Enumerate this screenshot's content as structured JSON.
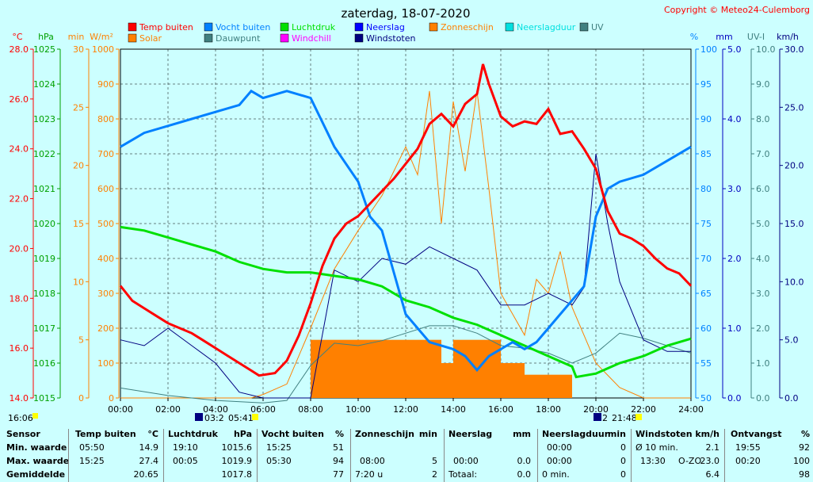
{
  "header": {
    "title": "zaterdag, 18-07-2020",
    "copyright": "Copyright © Meteo24-Culemborg"
  },
  "legend": [
    {
      "label": "Temp buiten",
      "color": "#ff0000"
    },
    {
      "label": "Vocht buiten",
      "color": "#0080ff"
    },
    {
      "label": "Luchtdruk",
      "color": "#00e000"
    },
    {
      "label": "Neerslag",
      "color": "#0000ff"
    },
    {
      "label": "Zonneschijn",
      "color": "#ff8000"
    },
    {
      "label": "Neerslagduur",
      "color": "#00e0e0"
    },
    {
      "label": "UV",
      "color": "#408080"
    },
    {
      "label": "Solar",
      "color": "#ff8000"
    },
    {
      "label": "Dauwpunt",
      "color": "#408080"
    },
    {
      "label": "Windchill",
      "color": "#ff00ff"
    },
    {
      "label": "Windstoten",
      "color": "#000080"
    }
  ],
  "axes": {
    "temp": {
      "unit": "°C",
      "ticks": [
        "28.0",
        "26.0",
        "24.0",
        "22.0",
        "20.0",
        "18.0",
        "16.0",
        "14.0"
      ],
      "color": "#ff0000"
    },
    "pressure": {
      "unit": "hPa",
      "ticks": [
        "1025",
        "1024",
        "1023",
        "1022",
        "1021",
        "1020",
        "1019",
        "1018",
        "1017",
        "1016",
        "1015"
      ],
      "color": "#00a000"
    },
    "sun_min": {
      "unit": "min",
      "ticks": [
        "30",
        "25",
        "20",
        "15",
        "10",
        "5",
        "0"
      ],
      "color": "#ff8000"
    },
    "solar": {
      "unit": "W/m²",
      "ticks": [
        "1000",
        "900",
        "800",
        "700",
        "600",
        "500",
        "400",
        "300",
        "200",
        "100",
        "0"
      ],
      "color": "#ff8000"
    },
    "humidity": {
      "unit": "%",
      "ticks": [
        "100",
        "95",
        "90",
        "85",
        "80",
        "75",
        "70",
        "65",
        "60",
        "55",
        "50"
      ],
      "color": "#0080ff"
    },
    "rain": {
      "unit": "mm",
      "ticks": [
        "5.0",
        "4.0",
        "3.0",
        "2.0",
        "1.0",
        "0.0"
      ],
      "color": "#0000c0"
    },
    "uv": {
      "unit": "UV-I",
      "ticks": [
        "10.0",
        "9.0",
        "8.0",
        "7.0",
        "6.0",
        "5.0",
        "4.0",
        "3.0",
        "2.0",
        "1.0",
        "0.0"
      ],
      "color": "#408080"
    },
    "wind": {
      "unit": "km/h",
      "ticks": [
        "30.0",
        "25.0",
        "20.0",
        "15.0",
        "10.0",
        "5.0",
        "0.0"
      ],
      "color": "#000080"
    },
    "time": {
      "ticks": [
        "00:00",
        "02:00",
        "04:00",
        "06:00",
        "08:00",
        "10:00",
        "12:00",
        "14:00",
        "16:00",
        "18:00",
        "20:00",
        "22:00",
        "24:00"
      ]
    }
  },
  "sun_events": {
    "sunrise_label": "16:06",
    "moon1": "03:2",
    "sunrise": "05:41",
    "moon2": "2",
    "sunset": "21:48"
  },
  "chart_data": {
    "type": "line",
    "title": "zaterdag, 18-07-2020",
    "x_unit": "hour",
    "x_range": [
      0,
      24
    ],
    "series": [
      {
        "name": "Temp buiten",
        "unit": "°C",
        "x": [
          0,
          0.5,
          1,
          1.5,
          2,
          2.5,
          3,
          3.5,
          4,
          4.5,
          5,
          5.5,
          5.83,
          6.5,
          7,
          7.5,
          8,
          8.5,
          9,
          9.5,
          10,
          10.5,
          11,
          11.5,
          12,
          12.5,
          13,
          13.5,
          14,
          14.5,
          15,
          15.25,
          15.5,
          16,
          16.5,
          17,
          17.5,
          18,
          18.5,
          19,
          19.5,
          20,
          20.5,
          21,
          21.5,
          22,
          22.5,
          23,
          23.5,
          24
        ],
        "y": [
          18.5,
          17.9,
          17.6,
          17.3,
          17.0,
          16.8,
          16.6,
          16.3,
          16.0,
          15.7,
          15.4,
          15.1,
          14.9,
          15.0,
          15.5,
          16.5,
          17.8,
          19.3,
          20.4,
          21.0,
          21.3,
          21.8,
          22.3,
          22.8,
          23.4,
          24.0,
          25.0,
          25.4,
          24.9,
          25.8,
          26.2,
          27.4,
          26.6,
          25.3,
          24.9,
          25.1,
          25.0,
          25.6,
          24.6,
          24.7,
          24.0,
          23.2,
          21.5,
          20.6,
          20.4,
          20.1,
          19.6,
          19.2,
          19.0,
          18.5
        ]
      },
      {
        "name": "Dauwpunt",
        "unit": "°C",
        "x": [
          0,
          2,
          4,
          6,
          7,
          8,
          9,
          10,
          11,
          12,
          13,
          14,
          15,
          16,
          17,
          18,
          19,
          20,
          21,
          22,
          23,
          24
        ],
        "y": [
          14.4,
          14.1,
          13.9,
          13.8,
          13.9,
          15.3,
          16.2,
          16.1,
          16.3,
          16.6,
          16.9,
          16.9,
          16.6,
          16.1,
          16.0,
          15.8,
          15.4,
          15.8,
          16.6,
          16.4,
          16.1,
          15.8
        ]
      },
      {
        "name": "Luchtdruk",
        "unit": "hPa",
        "x": [
          0,
          1,
          2,
          3,
          4,
          5,
          6,
          7,
          8,
          9,
          10,
          11,
          12,
          13,
          14,
          15,
          16,
          17,
          18,
          19,
          19.17,
          20,
          21,
          22,
          23,
          24
        ],
        "y": [
          1019.9,
          1019.8,
          1019.6,
          1019.4,
          1019.2,
          1018.9,
          1018.7,
          1018.6,
          1018.6,
          1018.5,
          1018.4,
          1018.2,
          1017.8,
          1017.6,
          1017.3,
          1017.1,
          1016.8,
          1016.5,
          1016.2,
          1015.9,
          1015.6,
          1015.7,
          1016.0,
          1016.2,
          1016.5,
          1016.7
        ]
      },
      {
        "name": "Vocht buiten",
        "unit": "%",
        "x": [
          0,
          0.5,
          1,
          2,
          3,
          4,
          5,
          5.5,
          6,
          7,
          8,
          9,
          10,
          10.5,
          11,
          11.5,
          12,
          13,
          14,
          14.5,
          15,
          15.5,
          16,
          16.5,
          17,
          17.5,
          18,
          18.5,
          19,
          19.5,
          20,
          20.5,
          21,
          22,
          23,
          24
        ],
        "y": [
          86,
          87,
          88,
          89,
          90,
          91,
          92,
          94,
          93,
          94,
          93,
          86,
          81,
          76,
          74,
          68,
          62,
          58,
          57,
          56,
          54,
          56,
          57,
          58,
          57,
          58,
          60,
          62,
          64,
          66,
          76,
          80,
          81,
          82,
          84,
          86
        ]
      },
      {
        "name": "Solar",
        "unit": "W/m²",
        "x": [
          0,
          5.5,
          6,
          7,
          8,
          9,
          10,
          11,
          12,
          12.5,
          13,
          13.5,
          14,
          14.5,
          15,
          15.5,
          16,
          16.5,
          17,
          17.5,
          18,
          18.5,
          19,
          19.5,
          20,
          21,
          22,
          24
        ],
        "y": [
          0,
          0,
          10,
          40,
          200,
          370,
          480,
          580,
          720,
          640,
          880,
          500,
          850,
          650,
          880,
          600,
          300,
          240,
          180,
          340,
          300,
          420,
          260,
          180,
          100,
          30,
          0,
          0
        ]
      },
      {
        "name": "Windstoten",
        "unit": "km/h",
        "x": [
          0,
          1,
          2,
          3,
          4,
          5,
          6,
          8,
          9,
          10,
          11,
          12,
          13,
          14,
          15,
          16,
          17,
          18,
          19,
          19.5,
          20,
          20.5,
          21,
          22,
          23,
          24
        ],
        "y": [
          5.0,
          4.5,
          6.0,
          4.5,
          3.0,
          0.5,
          0,
          0,
          11.0,
          10.0,
          12.0,
          11.5,
          13.0,
          12.0,
          11.0,
          8.0,
          8.0,
          9.0,
          8.0,
          9.5,
          21.0,
          15.0,
          10.0,
          5.0,
          4.0,
          4.0
        ]
      },
      {
        "name": "Zonneschijn",
        "unit": "min",
        "x": [
          8,
          9,
          10,
          11,
          12,
          13,
          13.5,
          14,
          15,
          16,
          17,
          18,
          19,
          20
        ],
        "y": [
          5,
          5,
          5,
          5,
          5,
          5,
          3,
          5,
          5,
          3,
          2,
          2,
          0,
          0
        ]
      }
    ]
  },
  "stats": {
    "headers": {
      "sensor": "Sensor",
      "temp": "Temp buiten",
      "temp_unit": "°C",
      "pressure": "Luchtdruk",
      "pressure_unit": "hPa",
      "humidity": "Vocht buiten",
      "humidity_unit": "%",
      "sun": "Zonneschijn",
      "sun_unit": "min",
      "rain": "Neerslag",
      "rain_unit": "mm",
      "rainduration": "Neerslagduur",
      "rainduration_unit": "min",
      "wind": "Windstoten",
      "wind_unit": "km/h",
      "irr": "Ontvangst",
      "irr_unit": "%"
    },
    "rows": [
      {
        "label": "Min. waarde",
        "temp_t": "05:50",
        "temp_v": "14.9",
        "pres_t": "19:10",
        "pres_v": "1015.6",
        "hum_t": "15:25",
        "hum_v": "51",
        "sun_t": "",
        "sun_v": "",
        "rain_t": "",
        "rain_v": "",
        "rd_t": "00:00",
        "rd_v": "0",
        "wind_t": "Ø 10 min.",
        "wind_d": "",
        "wind_v": "2.1",
        "irr_t": "19:55",
        "irr_v": "92"
      },
      {
        "label": "Max. waarde",
        "temp_t": "15:25",
        "temp_v": "27.4",
        "pres_t": "00:05",
        "pres_v": "1019.9",
        "hum_t": "05:30",
        "hum_v": "94",
        "sun_t": "08:00",
        "sun_v": "5",
        "rain_t": "00:00",
        "rain_v": "0.0",
        "rd_t": "00:00",
        "rd_v": "0",
        "wind_t": "13:30",
        "wind_d": "O-ZO",
        "wind_v": "23.0",
        "irr_t": "00:20",
        "irr_v": "100"
      },
      {
        "label": "Gemiddelde",
        "temp_t": "",
        "temp_v": "20.65",
        "pres_t": "",
        "pres_v": "1017.8",
        "hum_t": "",
        "hum_v": "77",
        "sun_t": "7:20 u",
        "sun_v": "2",
        "rain_t": "Totaal:",
        "rain_v": "0.0",
        "rd_t": "0 min.",
        "rd_v": "0",
        "wind_t": "",
        "wind_d": "",
        "wind_v": "6.4",
        "irr_t": "",
        "irr_v": "98"
      }
    ]
  }
}
